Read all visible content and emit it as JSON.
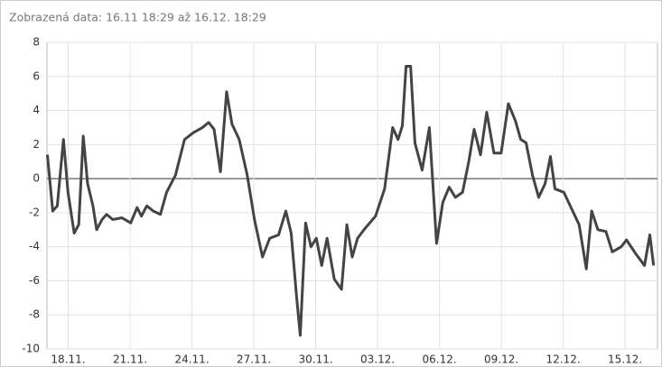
{
  "chart_data": {
    "type": "line",
    "title": "Zobrazená data: 16.11 18:29 až 16.12. 18:29",
    "x": [
      0.22,
      0.48,
      0.7,
      1.0,
      1.22,
      1.52,
      1.74,
      1.96,
      2.17,
      2.43,
      2.61,
      2.87,
      3.09,
      3.39,
      3.83,
      4.26,
      4.57,
      4.78,
      5.04,
      5.35,
      5.7,
      6.0,
      6.43,
      6.87,
      7.3,
      7.74,
      8.04,
      8.3,
      8.61,
      8.91,
      9.17,
      9.52,
      9.91,
      10.26,
      10.65,
      11.0,
      11.43,
      11.78,
      12.04,
      12.3,
      12.48,
      12.74,
      13.0,
      13.26,
      13.52,
      13.78,
      14.13,
      14.48,
      14.74,
      15.0,
      15.26,
      15.57,
      16.13,
      16.57,
      16.96,
      17.22,
      17.43,
      17.61,
      17.83,
      18.04,
      18.39,
      18.74,
      19.09,
      19.39,
      19.7,
      20.0,
      20.35,
      20.65,
      20.91,
      21.22,
      21.52,
      21.87,
      22.22,
      22.57,
      22.91,
      23.17,
      23.43,
      23.74,
      24.04,
      24.35,
      24.61,
      24.83,
      25.26,
      25.61,
      26.0,
      26.35,
      26.61,
      26.91,
      27.3,
      27.61,
      28.04,
      28.3,
      28.74,
      29.17,
      29.43,
      29.61
    ],
    "series": [
      {
        "color": "#444444",
        "values": [
          1.4,
          -1.9,
          -1.6,
          2.3,
          -0.8,
          -3.2,
          -2.7,
          2.5,
          -0.3,
          -1.6,
          -3.0,
          -2.4,
          -2.1,
          -2.4,
          -2.3,
          -2.6,
          -1.7,
          -2.2,
          -1.6,
          -1.9,
          -2.1,
          -0.8,
          0.2,
          2.3,
          2.7,
          3.0,
          3.3,
          2.9,
          0.4,
          5.1,
          3.2,
          2.3,
          0.2,
          -2.4,
          -4.6,
          -3.5,
          -3.3,
          -1.9,
          -3.2,
          -6.9,
          -9.2,
          -2.6,
          -4.0,
          -3.5,
          -5.1,
          -3.5,
          -5.9,
          -6.5,
          -2.7,
          -4.6,
          -3.5,
          -3.0,
          -2.2,
          -0.6,
          3.0,
          2.3,
          3.1,
          6.6,
          6.6,
          2.1,
          0.5,
          3.0,
          -3.8,
          -1.4,
          -0.5,
          -1.1,
          -0.8,
          1.0,
          2.9,
          1.4,
          3.9,
          1.5,
          1.5,
          4.4,
          3.4,
          2.3,
          2.1,
          0.2,
          -1.1,
          -0.3,
          1.3,
          -0.6,
          -0.8,
          -1.7,
          -2.7,
          -5.3,
          -1.9,
          -3.0,
          -3.1,
          -4.3,
          -4.0,
          -3.6,
          -4.4,
          -5.1,
          -3.3,
          -5.1
        ]
      }
    ],
    "xlim": [
      0.2,
      29.8
    ],
    "xticks": [
      {
        "value": 1.23,
        "label": "18.11."
      },
      {
        "value": 4.23,
        "label": "21.11."
      },
      {
        "value": 7.23,
        "label": "24.11."
      },
      {
        "value": 10.23,
        "label": "27.11."
      },
      {
        "value": 13.23,
        "label": "30.11."
      },
      {
        "value": 16.23,
        "label": "03.12."
      },
      {
        "value": 19.23,
        "label": "06.12."
      },
      {
        "value": 22.23,
        "label": "09.12."
      },
      {
        "value": 25.23,
        "label": "12.12."
      },
      {
        "value": 28.23,
        "label": "15.12."
      }
    ],
    "ylim": [
      -10,
      8
    ],
    "yticks": [
      -10,
      -8,
      -6,
      -4,
      -2,
      0,
      2,
      4,
      6,
      8
    ],
    "grid": true
  }
}
